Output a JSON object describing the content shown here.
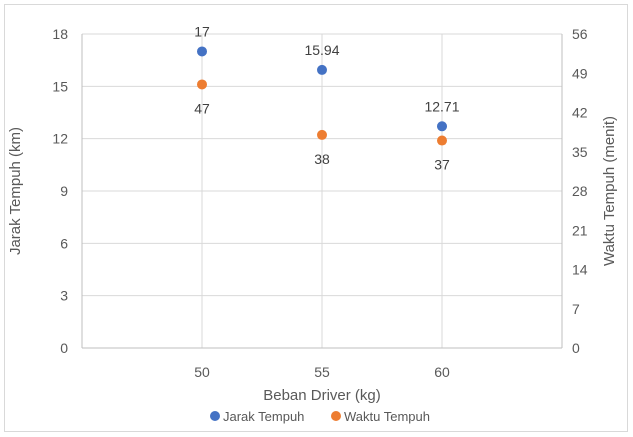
{
  "chart_data": {
    "type": "scatter",
    "x": [
      50,
      55,
      60
    ],
    "x_tick_labels": [
      "50",
      "55",
      "60"
    ],
    "xlabel": "Beban Driver (kg)",
    "ylabel": "Jarak Tempuh (km)",
    "y2label": "Waktu Tempuh (menit)",
    "ylim": [
      0,
      18
    ],
    "y_ticks": [
      0,
      3,
      6,
      9,
      12,
      15,
      18
    ],
    "y2lim": [
      0,
      56
    ],
    "y2_ticks": [
      0,
      7,
      14,
      21,
      28,
      35,
      42,
      49,
      56
    ],
    "grid": true,
    "legend_position": "bottom",
    "series": [
      {
        "name": "Jarak Tempuh",
        "axis": "left",
        "color": "#4472c4",
        "values": [
          17,
          15.94,
          12.71
        ],
        "labels": [
          "17",
          "15.94",
          "12.71"
        ],
        "label_position": "above"
      },
      {
        "name": "Waktu Tempuh",
        "axis": "right",
        "color": "#ed7d31",
        "values": [
          47,
          38,
          37
        ],
        "labels": [
          "47",
          "38",
          "37"
        ],
        "label_position": "below"
      }
    ]
  }
}
